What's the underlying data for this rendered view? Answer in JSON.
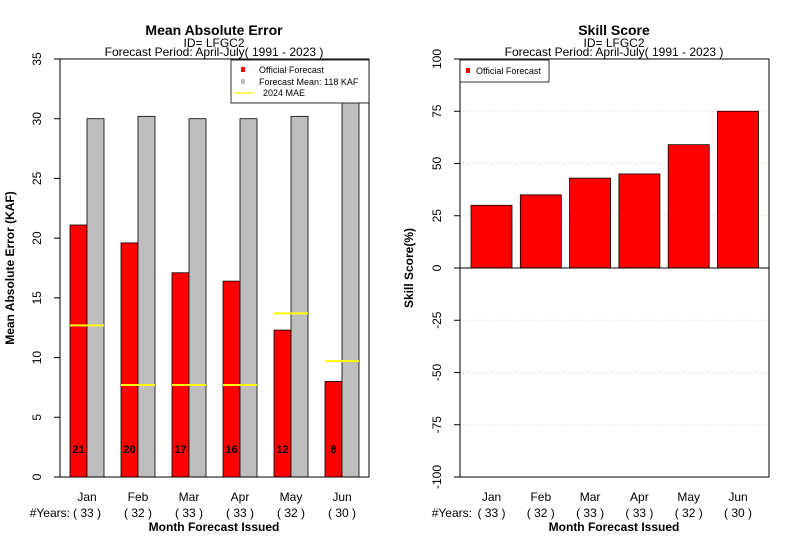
{
  "chart_data": [
    {
      "type": "bar",
      "title": "Mean Absolute Error",
      "subtitle_id": "ID= LFGC2",
      "subtitle_period": "Forecast Period: April-July( 1991 - 2023 )",
      "xlabel": "Month Forecast Issued",
      "ylabel": "Mean Absolute Error (KAF)",
      "ylim": [
        0,
        35
      ],
      "yticks": [
        "0",
        "5",
        "10",
        "15",
        "20",
        "25",
        "30",
        "35"
      ],
      "categories": [
        "Jan",
        "Feb",
        "Mar",
        "Apr",
        "May",
        "Jun"
      ],
      "years_label": "#Years:",
      "years": [
        "( 33 )",
        "( 32 )",
        "( 33 )",
        "( 33 )",
        "( 32 )",
        "( 30 )"
      ],
      "series": [
        {
          "name": "Official Forecast",
          "color": "#ff0000",
          "values": [
            21.1,
            19.6,
            17.1,
            16.4,
            12.3,
            8.0
          ],
          "labels": [
            "21",
            "20",
            "17",
            "16",
            "12",
            "8"
          ]
        },
        {
          "name": "Forecast Mean: 118 KAF",
          "color": "#bebebe",
          "values": [
            30.0,
            30.2,
            30.0,
            30.0,
            30.2,
            31.5
          ]
        }
      ],
      "mae_2024": {
        "name": "2024  MAE",
        "color": "#ffff00",
        "values": [
          12.7,
          7.7,
          7.7,
          7.7,
          13.7,
          9.7
        ]
      },
      "legend_position": "top-right",
      "grid": false
    },
    {
      "type": "bar",
      "title": "Skill Score",
      "subtitle_id": "ID= LFGC2",
      "subtitle_period": "Forecast Period: April-July( 1991 - 2023 )",
      "xlabel": "Month Forecast Issued",
      "ylabel": "Skill Score(%)",
      "ylim": [
        -100,
        100
      ],
      "yticks": [
        "-100",
        "-75",
        "-50",
        "-25",
        "0",
        "25",
        "50",
        "75",
        "100"
      ],
      "categories": [
        "Jan",
        "Feb",
        "Mar",
        "Apr",
        "May",
        "Jun"
      ],
      "years_label": "#Years:",
      "years": [
        "( 33 )",
        "( 32 )",
        "( 33 )",
        "( 33 )",
        "( 32 )",
        "( 30 )"
      ],
      "series": [
        {
          "name": "Official Forecast",
          "color": "#ff0000",
          "values": [
            30,
            35,
            43,
            45,
            59,
            75
          ]
        }
      ],
      "legend_position": "top-left",
      "grid": true
    }
  ]
}
